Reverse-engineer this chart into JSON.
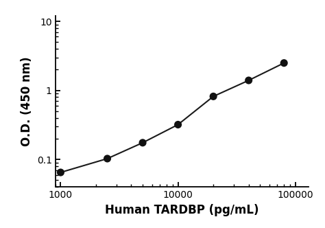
{
  "x": [
    1000,
    2500,
    5000,
    10000,
    20000,
    40000,
    80000
  ],
  "y": [
    0.065,
    0.103,
    0.175,
    0.32,
    0.82,
    1.4,
    2.5
  ],
  "xlabel": "Human TARDBP (pg/mL)",
  "ylabel": "O.D. (450 nm)",
  "xlim": [
    900,
    130000
  ],
  "ylim": [
    0.04,
    12
  ],
  "line_color": "#1a1a1a",
  "marker_color": "#111111",
  "marker_size": 8,
  "line_width": 1.5,
  "background_color": "#ffffff",
  "xlabel_fontsize": 12,
  "ylabel_fontsize": 12,
  "tick_fontsize": 10,
  "xticks": [
    1000,
    10000,
    100000
  ],
  "xtick_labels": [
    "1000",
    "10000",
    "100000"
  ],
  "yticks": [
    0.1,
    1,
    10
  ],
  "ytick_labels": [
    "0.1",
    "1",
    "10"
  ]
}
